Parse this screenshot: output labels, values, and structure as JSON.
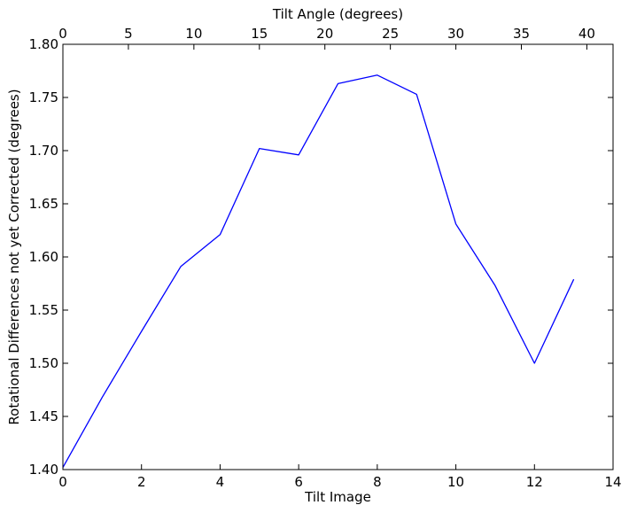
{
  "chart_data": {
    "type": "line",
    "title": "",
    "xlabel": "Tilt Image",
    "ylabel": "Rotational Differences not yet Corrected (degrees)",
    "x2label": "Tilt Angle (degrees)",
    "xlim": [
      0,
      14
    ],
    "ylim": [
      1.4,
      1.8
    ],
    "x2lim": [
      0,
      42
    ],
    "xticks": [
      0,
      2,
      4,
      6,
      8,
      10,
      12,
      14
    ],
    "yticks": [
      1.4,
      1.45,
      1.5,
      1.55,
      1.6,
      1.65,
      1.7,
      1.75,
      1.8
    ],
    "x2ticks": [
      0,
      5,
      10,
      15,
      20,
      25,
      30,
      35,
      40
    ],
    "xtick_labels": [
      "0",
      "2",
      "4",
      "6",
      "8",
      "10",
      "12",
      "14"
    ],
    "ytick_labels": [
      "1.40",
      "1.45",
      "1.50",
      "1.55",
      "1.60",
      "1.65",
      "1.70",
      "1.75",
      "1.80"
    ],
    "x2tick_labels": [
      "0",
      "5",
      "10",
      "15",
      "20",
      "25",
      "30",
      "35",
      "40"
    ],
    "grid": false,
    "legend": "none",
    "series": [
      {
        "color": "#0000ff",
        "x": [
          0,
          1,
          2,
          3,
          4,
          5,
          6,
          7,
          8,
          9,
          10,
          11,
          12,
          13
        ],
        "y": [
          1.402,
          1.468,
          1.53,
          1.591,
          1.621,
          1.702,
          1.696,
          1.763,
          1.771,
          1.753,
          1.631,
          1.573,
          1.5,
          1.579
        ]
      }
    ]
  }
}
